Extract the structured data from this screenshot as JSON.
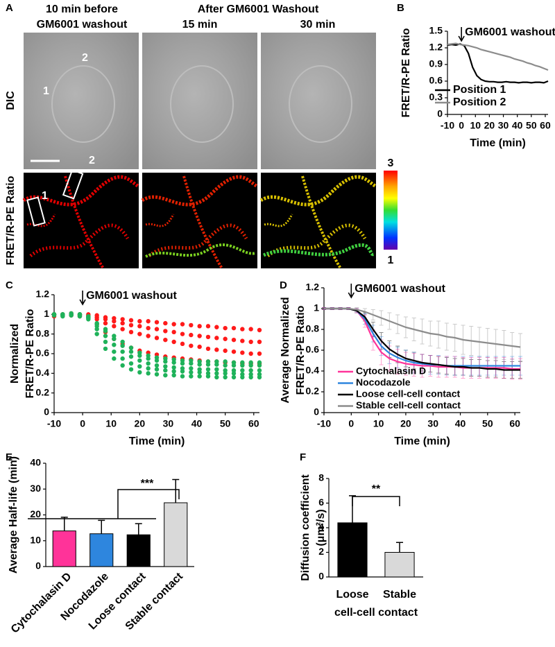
{
  "panel_a": {
    "label": "A",
    "before_title": [
      "10 min before",
      "GM6001 washout"
    ],
    "after_title": "After GM6001 Washout",
    "time_labels": [
      "15 min",
      "30 min"
    ],
    "row_labels": [
      "DIC",
      "FRET/R-PE Ratio"
    ],
    "region_labels": [
      "1",
      "2"
    ],
    "colorbar": {
      "max": 3,
      "min": 1
    }
  },
  "chart_data": [
    {
      "panel": "B",
      "type": "line",
      "ylabel": [
        "FRET/R-PE Ratio"
      ],
      "xlabel": "Time (min)",
      "annotation": {
        "text": "GM6001 washout",
        "x": 0
      },
      "x": [
        -10,
        -7,
        -4,
        -1,
        2,
        5,
        8,
        11,
        14,
        17,
        20,
        23,
        26,
        29,
        32,
        35,
        38,
        41,
        44,
        47,
        50,
        53,
        56,
        59,
        62
      ],
      "series": [
        {
          "name": "Position 1",
          "color": "#000000",
          "values": [
            1.25,
            1.26,
            1.25,
            1.27,
            1.24,
            1.1,
            0.85,
            0.7,
            0.63,
            0.6,
            0.59,
            0.59,
            0.58,
            0.58,
            0.59,
            0.58,
            0.58,
            0.57,
            0.58,
            0.58,
            0.57,
            0.58,
            0.58,
            0.57,
            0.6
          ]
        },
        {
          "name": "Position 2",
          "color": "#8c8c8c",
          "values": [
            1.26,
            1.27,
            1.28,
            1.26,
            1.25,
            1.24,
            1.22,
            1.2,
            1.17,
            1.15,
            1.13,
            1.11,
            1.09,
            1.07,
            1.05,
            1.03,
            1.0,
            0.98,
            0.96,
            0.93,
            0.91,
            0.88,
            0.86,
            0.83,
            0.8
          ]
        }
      ],
      "xlim": [
        -10,
        62
      ],
      "xticks": [
        -10,
        0,
        10,
        20,
        30,
        40,
        50,
        60
      ],
      "ylim": [
        0,
        1.5
      ],
      "yticks": [
        0,
        0.3,
        0.6,
        0.9,
        1.2,
        1.5
      ]
    },
    {
      "panel": "C",
      "type": "scatter",
      "ylabel": [
        "Normalized",
        "FRET/R-PE Ratio"
      ],
      "xlabel": "Time (min)",
      "annotation": {
        "text": "GM6001 washout",
        "x": 0
      },
      "x": [
        -10,
        -7,
        -4,
        -1,
        2,
        5,
        8,
        11,
        14,
        17,
        20,
        23,
        26,
        29,
        32,
        35,
        38,
        41,
        44,
        47,
        50,
        53,
        56,
        59,
        62
      ],
      "series": [
        {
          "color": "#ff1a1a",
          "values": [
            1.0,
            0.99,
            1.0,
            0.98,
            1.0,
            0.99,
            0.97,
            0.96,
            0.95,
            0.94,
            0.93,
            0.93,
            0.92,
            0.91,
            0.9,
            0.9,
            0.89,
            0.88,
            0.88,
            0.87,
            0.86,
            0.86,
            0.85,
            0.85,
            0.84
          ]
        },
        {
          "color": "#ff1a1a",
          "values": [
            1.0,
            1.0,
            0.99,
            1.0,
            0.99,
            0.97,
            0.95,
            0.93,
            0.91,
            0.89,
            0.88,
            0.86,
            0.85,
            0.83,
            0.82,
            0.8,
            0.79,
            0.78,
            0.77,
            0.76,
            0.75,
            0.74,
            0.73,
            0.72,
            0.72
          ]
        },
        {
          "color": "#ff1a1a",
          "values": [
            0.98,
            1.0,
            1.01,
            0.99,
            0.98,
            0.95,
            0.91,
            0.88,
            0.85,
            0.82,
            0.8,
            0.78,
            0.76,
            0.74,
            0.72,
            0.7,
            0.68,
            0.67,
            0.65,
            0.64,
            0.63,
            0.62,
            0.61,
            0.6,
            0.6
          ]
        },
        {
          "color": "#ff1a1a",
          "values": [
            1.0,
            0.99,
            1.0,
            1.0,
            0.97,
            0.9,
            0.82,
            0.75,
            0.7,
            0.66,
            0.63,
            0.61,
            0.59,
            0.57,
            0.56,
            0.55,
            0.54,
            0.53,
            0.52,
            0.52,
            0.51,
            0.51,
            0.5,
            0.5,
            0.5
          ]
        },
        {
          "color": "#1fb25a",
          "values": [
            1.0,
            1.0,
            0.99,
            1.0,
            0.97,
            0.85,
            0.72,
            0.62,
            0.55,
            0.5,
            0.47,
            0.45,
            0.44,
            0.43,
            0.42,
            0.42,
            0.41,
            0.41,
            0.4,
            0.4,
            0.4,
            0.4,
            0.39,
            0.39,
            0.39
          ]
        },
        {
          "color": "#1fb25a",
          "values": [
            1.0,
            0.99,
            1.0,
            0.98,
            0.96,
            0.88,
            0.78,
            0.69,
            0.62,
            0.57,
            0.53,
            0.5,
            0.48,
            0.47,
            0.46,
            0.45,
            0.45,
            0.44,
            0.44,
            0.44,
            0.43,
            0.43,
            0.43,
            0.43,
            0.43
          ]
        },
        {
          "color": "#1fb25a",
          "values": [
            0.99,
            1.0,
            1.0,
            1.0,
            0.98,
            0.91,
            0.83,
            0.75,
            0.68,
            0.62,
            0.58,
            0.55,
            0.53,
            0.52,
            0.51,
            0.5,
            0.5,
            0.49,
            0.49,
            0.49,
            0.48,
            0.48,
            0.48,
            0.48,
            0.48
          ]
        },
        {
          "color": "#1fb25a",
          "values": [
            1.0,
            1.0,
            1.01,
            0.99,
            0.95,
            0.8,
            0.65,
            0.55,
            0.48,
            0.44,
            0.41,
            0.4,
            0.39,
            0.38,
            0.38,
            0.37,
            0.37,
            0.37,
            0.37,
            0.36,
            0.36,
            0.36,
            0.36,
            0.36,
            0.36
          ]
        },
        {
          "color": "#1fb25a",
          "values": [
            1.0,
            0.98,
            1.0,
            1.0,
            0.97,
            0.9,
            0.85,
            0.78,
            0.72,
            0.66,
            0.61,
            0.58,
            0.56,
            0.55,
            0.54,
            0.53,
            0.53,
            0.52,
            0.52,
            0.52,
            0.52,
            0.51,
            0.51,
            0.51,
            0.51
          ]
        }
      ],
      "xlim": [
        -10,
        62
      ],
      "xticks": [
        -10,
        0,
        10,
        20,
        30,
        40,
        50,
        60
      ],
      "ylim": [
        0,
        1.2
      ],
      "yticks": [
        0,
        0.2,
        0.4,
        0.6,
        0.8,
        1,
        1.2
      ]
    },
    {
      "panel": "D",
      "type": "errorline",
      "ylabel": [
        "Average Normalized",
        "FRET/R-PE Ratio"
      ],
      "xlabel": "Time (min)",
      "annotation": {
        "text": "GM6001 washout",
        "x": 0
      },
      "x": [
        -10,
        -7,
        -4,
        -1,
        2,
        5,
        8,
        11,
        14,
        17,
        20,
        23,
        26,
        29,
        32,
        35,
        38,
        41,
        44,
        47,
        50,
        53,
        56,
        59,
        62
      ],
      "series": [
        {
          "name": "Cytochalasin D",
          "color": "#ff3399",
          "values": [
            1,
            1,
            1,
            1,
            0.98,
            0.88,
            0.7,
            0.58,
            0.52,
            0.49,
            0.47,
            0.46,
            0.45,
            0.45,
            0.44,
            0.44,
            0.44,
            0.43,
            0.43,
            0.43,
            0.43,
            0.43,
            0.43,
            0.42,
            0.42
          ],
          "errors": [
            0.01,
            0.01,
            0.01,
            0.01,
            0.02,
            0.06,
            0.1,
            0.12,
            0.12,
            0.12,
            0.11,
            0.11,
            0.11,
            0.1,
            0.1,
            0.1,
            0.1,
            0.1,
            0.1,
            0.1,
            0.1,
            0.1,
            0.1,
            0.1,
            0.1
          ]
        },
        {
          "name": "Nocodazole",
          "color": "#2e86de",
          "values": [
            1,
            1,
            1,
            1,
            0.98,
            0.9,
            0.76,
            0.64,
            0.57,
            0.53,
            0.5,
            0.48,
            0.47,
            0.46,
            0.46,
            0.45,
            0.45,
            0.45,
            0.45,
            0.45,
            0.45,
            0.45,
            0.45,
            0.45,
            0.45
          ],
          "errors": [
            0.01,
            0.01,
            0.01,
            0.01,
            0.02,
            0.05,
            0.08,
            0.09,
            0.1,
            0.1,
            0.1,
            0.1,
            0.09,
            0.09,
            0.09,
            0.09,
            0.09,
            0.09,
            0.09,
            0.09,
            0.09,
            0.09,
            0.09,
            0.09,
            0.09
          ]
        },
        {
          "name": "Loose cell-cell contact",
          "color": "#000000",
          "values": [
            1,
            1,
            1,
            1,
            0.98,
            0.92,
            0.8,
            0.69,
            0.61,
            0.56,
            0.52,
            0.5,
            0.48,
            0.47,
            0.46,
            0.45,
            0.44,
            0.44,
            0.43,
            0.43,
            0.42,
            0.42,
            0.41,
            0.41,
            0.41
          ],
          "errors": [
            0.01,
            0.01,
            0.01,
            0.01,
            0.02,
            0.04,
            0.07,
            0.08,
            0.08,
            0.08,
            0.08,
            0.08,
            0.08,
            0.08,
            0.08,
            0.08,
            0.08,
            0.08,
            0.08,
            0.08,
            0.08,
            0.08,
            0.08,
            0.08,
            0.08
          ]
        },
        {
          "name": "Stable cell-cell contact",
          "color": "#8c8c8c",
          "values": [
            1,
            1,
            1,
            1,
            0.99,
            0.97,
            0.94,
            0.91,
            0.88,
            0.85,
            0.82,
            0.8,
            0.78,
            0.76,
            0.75,
            0.73,
            0.72,
            0.7,
            0.69,
            0.68,
            0.67,
            0.66,
            0.65,
            0.64,
            0.63
          ],
          "errors": [
            0.01,
            0.01,
            0.01,
            0.01,
            0.02,
            0.03,
            0.05,
            0.07,
            0.08,
            0.09,
            0.1,
            0.11,
            0.12,
            0.12,
            0.13,
            0.13,
            0.13,
            0.14,
            0.14,
            0.14,
            0.14,
            0.14,
            0.14,
            0.13,
            0.13
          ]
        }
      ],
      "xlim": [
        -10,
        62
      ],
      "xticks": [
        -10,
        0,
        10,
        20,
        30,
        40,
        50,
        60
      ],
      "ylim": [
        0,
        1.2
      ],
      "yticks": [
        0,
        0.2,
        0.4,
        0.6,
        0.8,
        1,
        1.2
      ]
    },
    {
      "panel": "E",
      "type": "bar",
      "ylabel": [
        "Average Half-life (min)"
      ],
      "significance": "***",
      "categories": [
        "Cytochalasin D",
        "Nocodazole",
        "Loose contact",
        "Stable contact"
      ],
      "values": [
        13.8,
        12.7,
        12.3,
        24.7
      ],
      "errors": [
        5.3,
        5.2,
        4.3,
        9.0
      ],
      "colors": [
        "#ff3399",
        "#2e86de",
        "#000000",
        "#d9d9d9"
      ],
      "ylim": [
        0,
        40
      ],
      "yticks": [
        0,
        10,
        20,
        30,
        40
      ]
    },
    {
      "panel": "F",
      "type": "bar",
      "ylabel": [
        "Diffusion coefficient",
        "(μm²/s)"
      ],
      "xlabel": "cell-cell contact",
      "significance": "**",
      "categories": [
        "Loose",
        "Stable"
      ],
      "values": [
        4.4,
        2.0
      ],
      "errors": [
        2.2,
        0.8
      ],
      "colors": [
        "#000000",
        "#d9d9d9"
      ],
      "ylim": [
        0,
        8
      ],
      "yticks": [
        0,
        2,
        4,
        6,
        8
      ]
    }
  ]
}
